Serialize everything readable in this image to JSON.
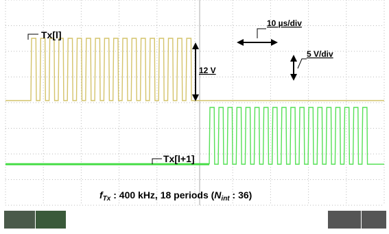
{
  "labels": {
    "tx_l": "Tx[l]",
    "tx_l1": "Tx[l+1]",
    "amplitude": "12 V",
    "time_div": "10 µs/div",
    "volt_div": "5 V/div"
  },
  "caption": {
    "f": "f",
    "f_sub": "Tx",
    "middle": " : 400 kHz, 18 periods (",
    "n": "N",
    "n_sub": "int",
    "end": " : 36)"
  }
}
